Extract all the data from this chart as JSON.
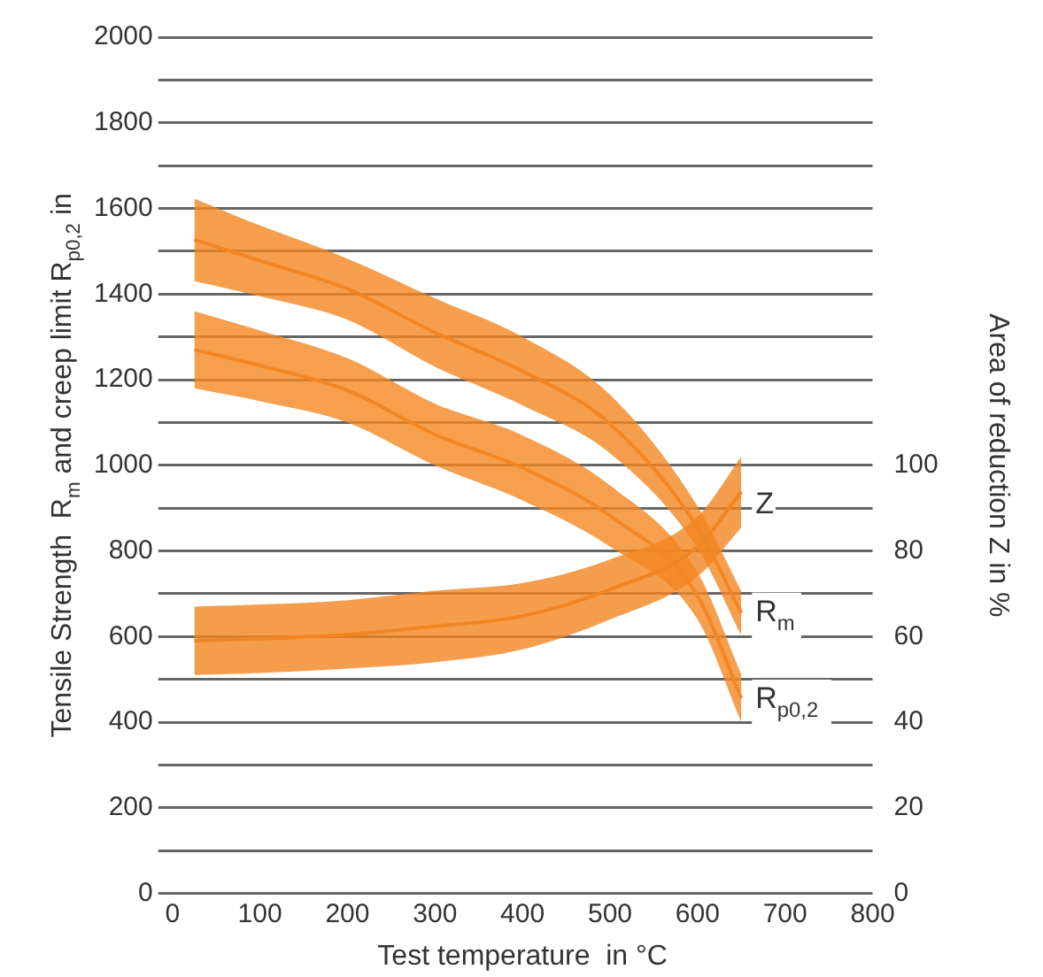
{
  "chart_data": {
    "type": "line",
    "xlabel": "Test temperature  in °C",
    "ylabel": "Tensile Strength  R$_{m}$ and creep limit R$_{p0,2}$ in",
    "y2label": "Area of reduction Z in %",
    "xlim": [
      0,
      800
    ],
    "xticks": [
      0,
      100,
      200,
      300,
      400,
      500,
      600,
      700,
      800
    ],
    "ylim": [
      0,
      2000
    ],
    "yticks": [
      0,
      {
        "value": 100,
        "label": null
      },
      200,
      {
        "value": 300,
        "label": null
      },
      400,
      {
        "value": 500,
        "label": null
      },
      600,
      {
        "value": 700,
        "label": null
      },
      800,
      {
        "value": 900,
        "label": null
      },
      1000,
      {
        "value": 1100,
        "label": null
      },
      1200,
      {
        "value": 1300,
        "label": null
      },
      1400,
      {
        "value": 1500,
        "label": null
      },
      1600,
      {
        "value": 1700,
        "label": null
      },
      1800,
      {
        "value": 1900,
        "label": null
      },
      2000
    ],
    "y2lim": [
      0,
      200
    ],
    "y2ticks": [
      0,
      20,
      40,
      60,
      80,
      100
    ],
    "grid": "y",
    "series": [
      {
        "name": "R$_{m}$",
        "color": "#f28622",
        "x": [
          25,
          100,
          200,
          300,
          400,
          500,
          600,
          650
        ],
        "values": [
          1527,
          1478,
          1412,
          1310,
          1220,
          1097,
          855,
          655
        ],
        "lower": [
          1430,
          1395,
          1340,
          1230,
          1140,
          1028,
          806,
          603
        ],
        "upper": [
          1623,
          1560,
          1483,
          1390,
          1300,
          1165,
          904,
          706
        ]
      },
      {
        "name": "R$_{p0,2}$",
        "color": "#f38723",
        "x": [
          25,
          100,
          200,
          300,
          400,
          500,
          600,
          650
        ],
        "values": [
          1270,
          1233,
          1175,
          1072,
          994,
          882,
          695,
          456
        ],
        "lower": [
          1180,
          1150,
          1100,
          1000,
          918,
          810,
          640,
          400
        ],
        "upper": [
          1360,
          1315,
          1250,
          1144,
          1070,
          953,
          750,
          512
        ]
      },
      {
        "name": "Z",
        "color": "#f18521",
        "axis": "y2",
        "x": [
          25,
          100,
          200,
          300,
          400,
          500,
          600,
          650
        ],
        "values": [
          59,
          59.5,
          60.5,
          62.4,
          64.8,
          71,
          81,
          93.8
        ],
        "lower": [
          51,
          51.5,
          52.5,
          54,
          57,
          64,
          74,
          85.5
        ],
        "upper": [
          67,
          67.5,
          68.5,
          70.7,
          72.5,
          78,
          88,
          102
        ]
      }
    ]
  }
}
